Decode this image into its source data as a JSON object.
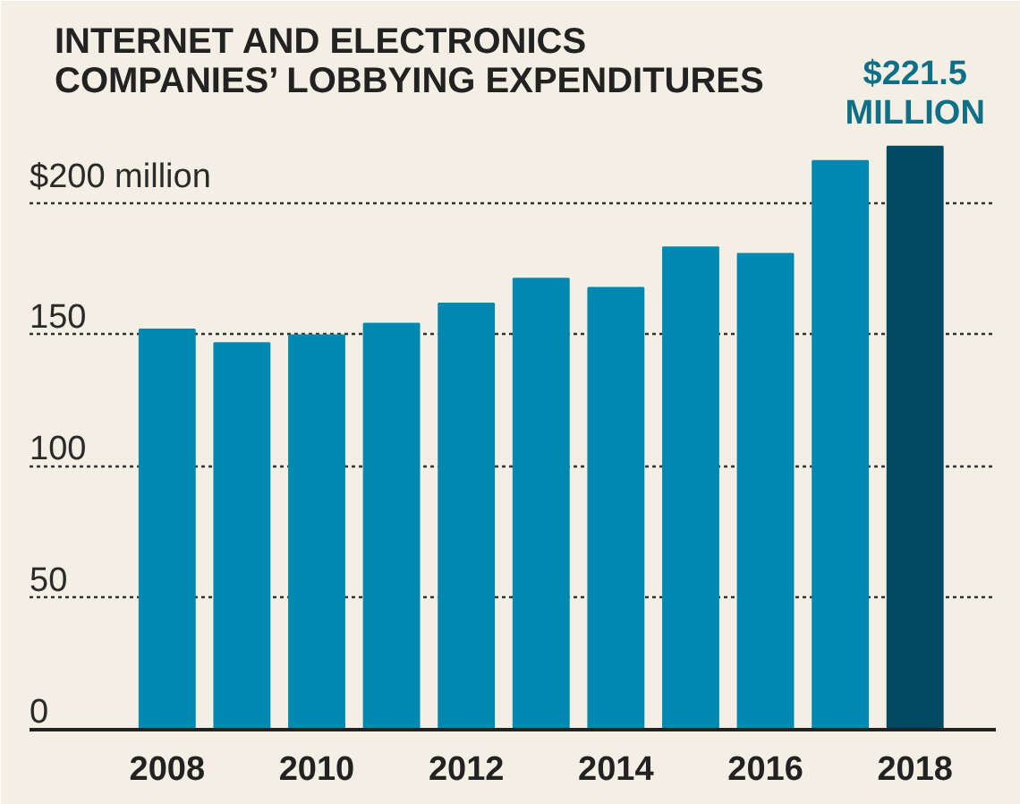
{
  "chart_data": {
    "type": "bar",
    "title": "INTERNET AND ELECTRONICS\nCOMPANIES’ LOBBYING EXPENDITURES",
    "x": [
      2008,
      2009,
      2010,
      2011,
      2012,
      2013,
      2014,
      2015,
      2016,
      2017,
      2018
    ],
    "values": [
      152,
      146.8,
      149.8,
      154.2,
      161.9,
      171.3,
      167.8,
      183.2,
      180.7,
      216,
      221.5
    ],
    "colors": [
      "#0089b0",
      "#0089b0",
      "#0089b0",
      "#0089b0",
      "#0089b0",
      "#0089b0",
      "#0089b0",
      "#0089b0",
      "#0089b0",
      "#0089b0",
      "#004a63"
    ],
    "xlim": [
      2006.16,
      2019.08
    ],
    "xticks": [
      2008,
      2010,
      2012,
      2014,
      2016,
      2018
    ],
    "ylim": [
      0,
      270
    ],
    "yticks": [
      0,
      50,
      100,
      150,
      {
        "value": 200,
        "label": "$200 million"
      }
    ],
    "grid": "y",
    "annotations": [
      {
        "text": "$221.5\nMILLION",
        "x": 2018,
        "y": 221.5
      }
    ]
  }
}
